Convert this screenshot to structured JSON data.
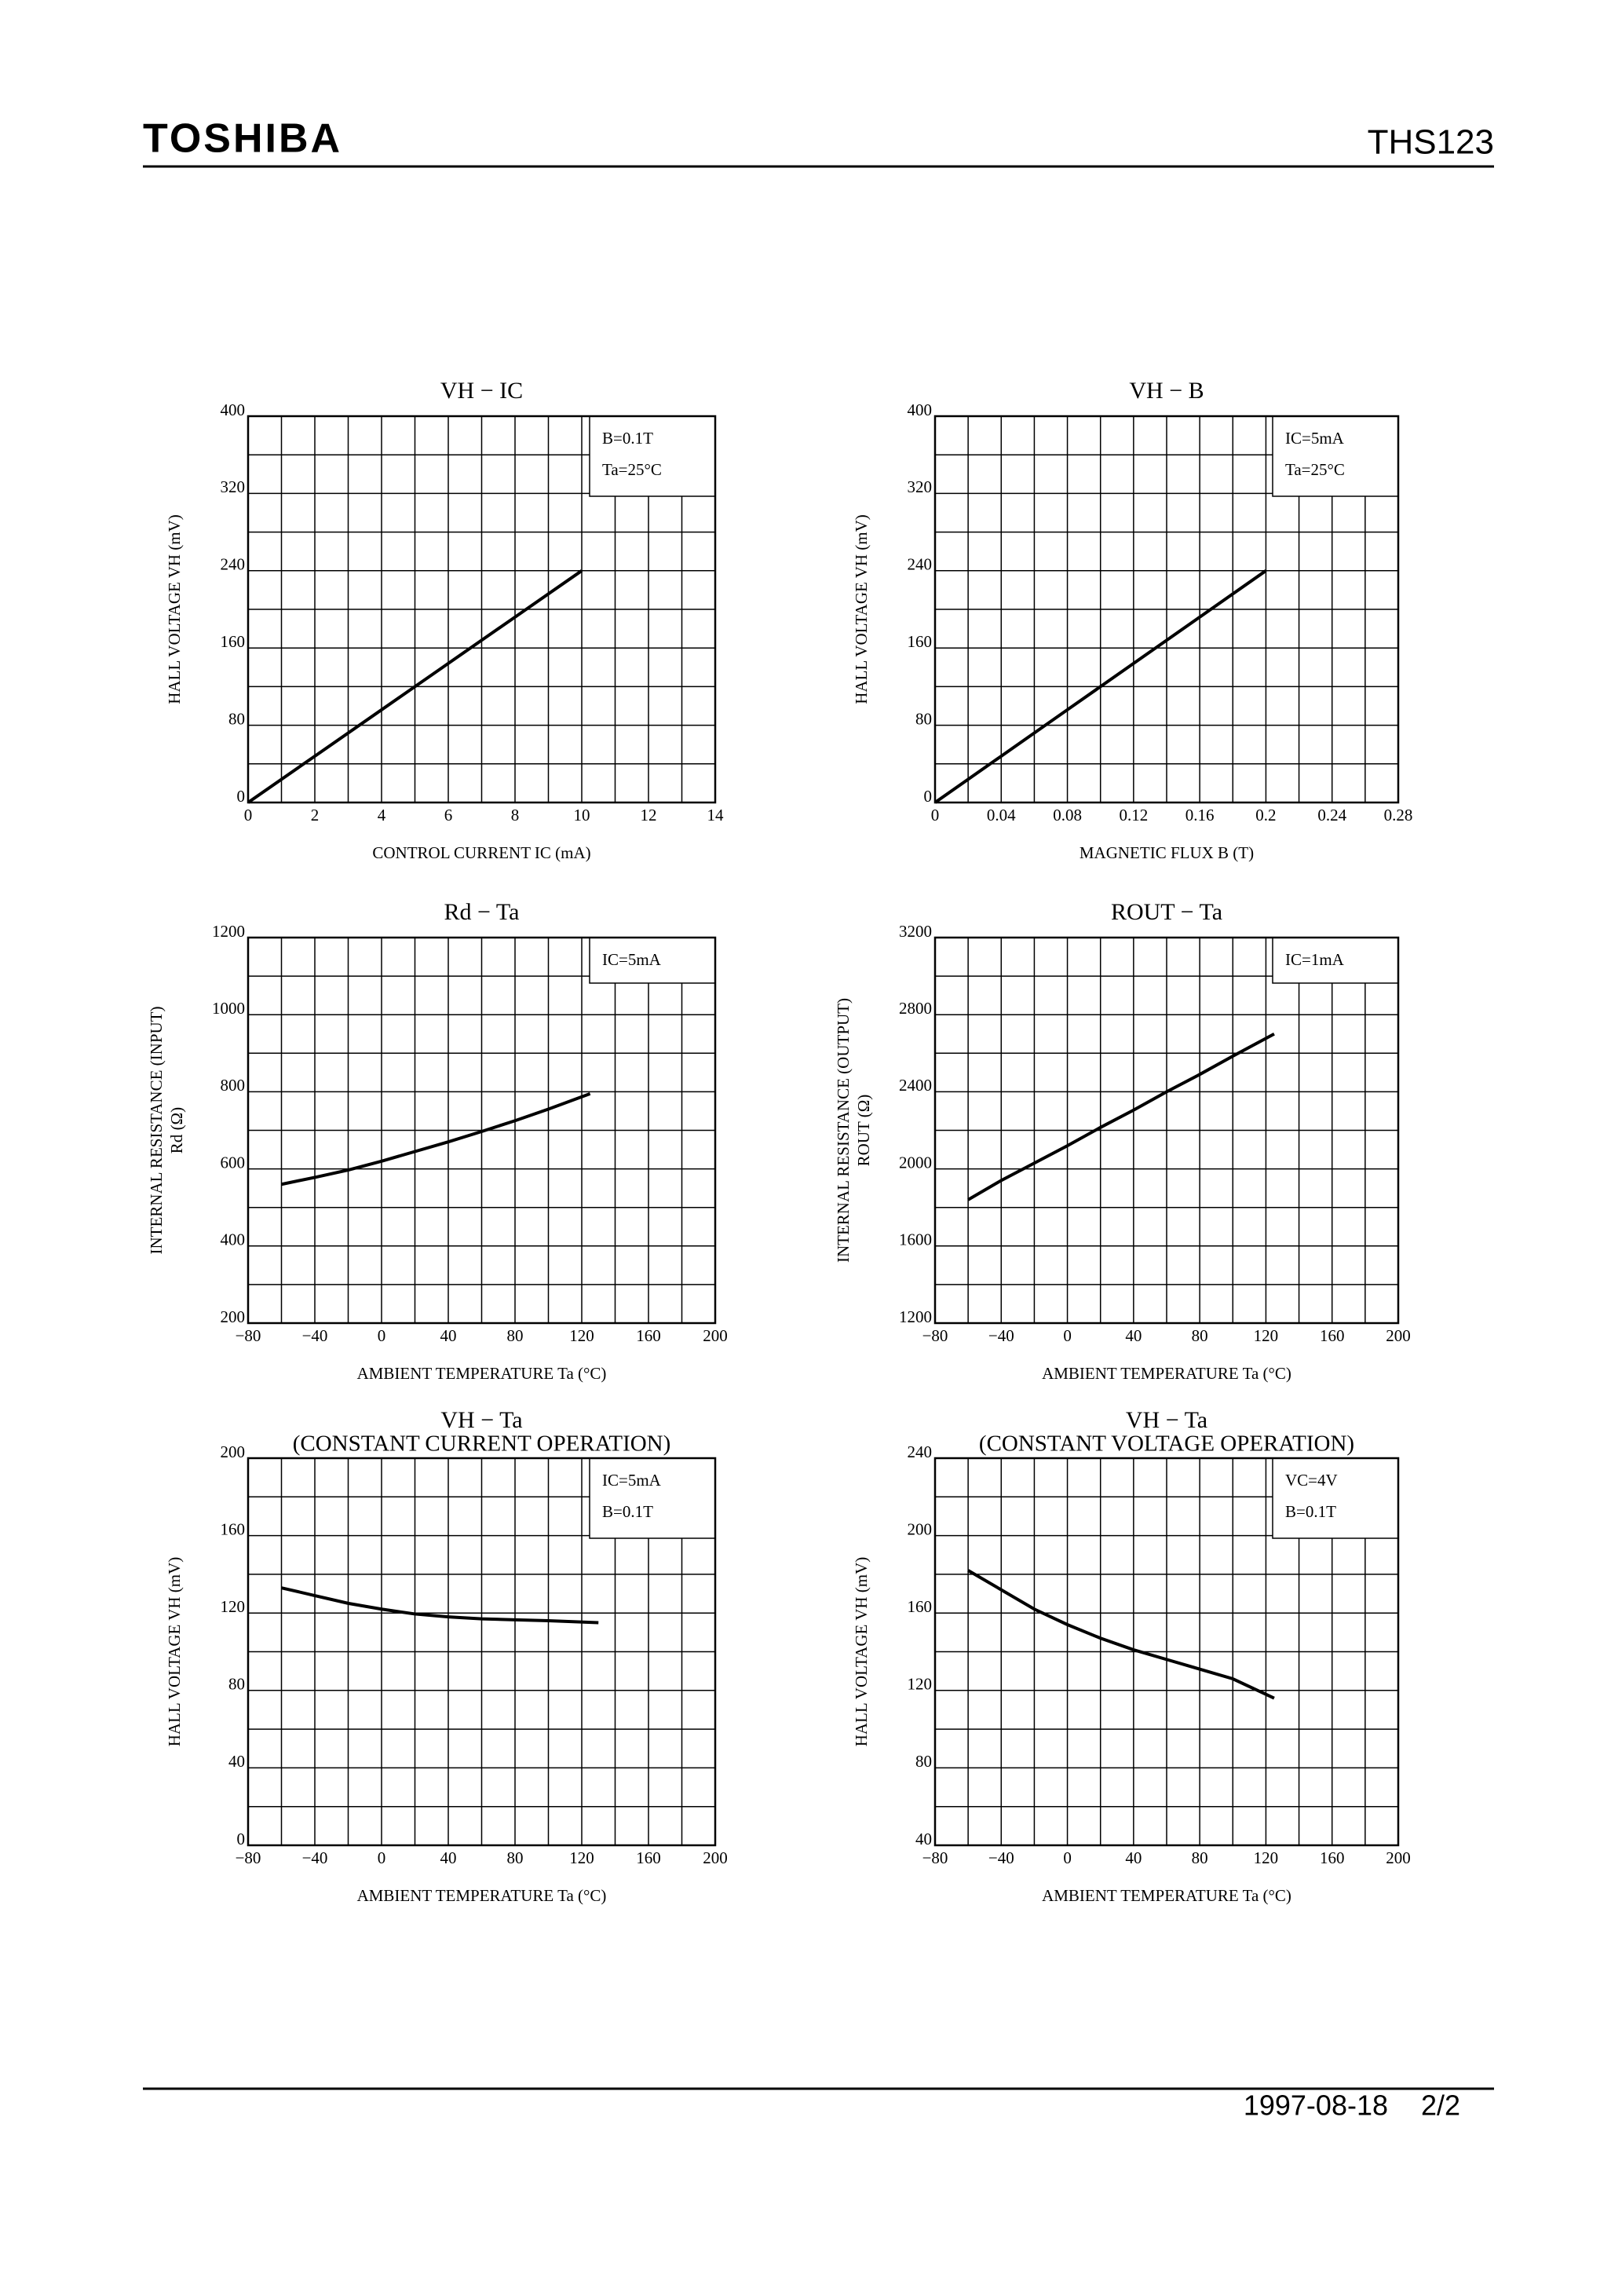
{
  "header": {
    "brand": "TOSHIBA",
    "part": "THS123"
  },
  "footer": {
    "date": "1997-08-18",
    "page": "2/2"
  },
  "chart_data": [
    {
      "type": "line",
      "title": "VH − IC",
      "xlabel": "CONTROL CURRENT IC (mA)",
      "ylabel": [
        "HALL VOLTAGE VH (mV)"
      ],
      "annotations": [
        "B=0.1T",
        "Ta=25°C"
      ],
      "grid": true,
      "color": "#000000",
      "x": [
        0,
        2,
        4,
        6,
        8,
        10
      ],
      "values": [
        0,
        48,
        96,
        144,
        192,
        240
      ],
      "xlim": [
        0,
        14
      ],
      "xticks": [
        0,
        2,
        4,
        6,
        8,
        10,
        12,
        14
      ],
      "ylim": [
        0,
        400
      ],
      "yticks": [
        0,
        80,
        160,
        240,
        320,
        400
      ]
    },
    {
      "type": "line",
      "title": "VH − B",
      "xlabel": "MAGNETIC FLUX B (T)",
      "ylabel": [
        "HALL VOLTAGE VH (mV)"
      ],
      "annotations": [
        "IC=5mA",
        "Ta=25°C"
      ],
      "grid": true,
      "color": "#000000",
      "x": [
        0,
        0.04,
        0.08,
        0.12,
        0.16,
        0.2
      ],
      "values": [
        0,
        48,
        96,
        144,
        192,
        240
      ],
      "xlim": [
        0,
        0.28
      ],
      "xticks": [
        0,
        0.04,
        0.08,
        0.12,
        0.16,
        0.2,
        0.24,
        0.28
      ],
      "ylim": [
        0,
        400
      ],
      "yticks": [
        0,
        80,
        160,
        240,
        320,
        400
      ]
    },
    {
      "type": "line",
      "title": "Rd − Ta",
      "xlabel": "AMBIENT TEMPERATURE Ta (°C)",
      "ylabel": [
        "INTERNAL RESISTANCE (INPUT)",
        "Rd (Ω)"
      ],
      "annotations": [
        "IC=5mA"
      ],
      "grid": true,
      "color": "#000000",
      "x": [
        -60,
        -40,
        -20,
        0,
        20,
        40,
        60,
        80,
        100,
        125
      ],
      "values": [
        560,
        578,
        597,
        620,
        645,
        670,
        697,
        725,
        755,
        795
      ],
      "xlim": [
        -80,
        200
      ],
      "xticks": [
        {
          "value": -80,
          "label": "−80"
        },
        {
          "value": -40,
          "label": "−40"
        },
        0,
        40,
        80,
        120,
        160,
        200
      ],
      "ylim": [
        200,
        1200
      ],
      "yticks": [
        200,
        400,
        600,
        800,
        1000,
        1200
      ]
    },
    {
      "type": "line",
      "title": "ROUT − Ta",
      "xlabel": "AMBIENT TEMPERATURE Ta (°C)",
      "ylabel": [
        "INTERNAL RESISTANCE (OUTPUT)",
        "ROUT (Ω)"
      ],
      "annotations": [
        "IC=1mA"
      ],
      "grid": true,
      "color": "#000000",
      "x": [
        -60,
        -40,
        -20,
        0,
        20,
        40,
        60,
        80,
        100,
        125
      ],
      "values": [
        1840,
        1940,
        2030,
        2120,
        2215,
        2305,
        2400,
        2490,
        2585,
        2700
      ],
      "xlim": [
        -80,
        200
      ],
      "xticks": [
        {
          "value": -80,
          "label": "−80"
        },
        {
          "value": -40,
          "label": "−40"
        },
        0,
        40,
        80,
        120,
        160,
        200
      ],
      "ylim": [
        1200,
        3200
      ],
      "yticks": [
        1200,
        1600,
        2000,
        2400,
        2800,
        3200
      ]
    },
    {
      "type": "line",
      "title": "VH − Ta",
      "subtitle": "(CONSTANT CURRENT OPERATION)",
      "xlabel": "AMBIENT TEMPERATURE Ta (°C)",
      "ylabel": [
        "HALL VOLTAGE VH (mV)"
      ],
      "annotations": [
        "IC=5mA",
        "B=0.1T"
      ],
      "grid": true,
      "color": "#000000",
      "x": [
        -60,
        -40,
        -20,
        0,
        20,
        40,
        60,
        80,
        100,
        130
      ],
      "values": [
        133,
        129,
        125,
        122,
        119.5,
        118,
        117,
        116.5,
        116,
        115
      ],
      "xlim": [
        -80,
        200
      ],
      "xticks": [
        {
          "value": -80,
          "label": "−80"
        },
        {
          "value": -40,
          "label": "−40"
        },
        0,
        40,
        80,
        120,
        160,
        200
      ],
      "ylim": [
        0,
        200
      ],
      "yticks": [
        0,
        40,
        80,
        120,
        160,
        200
      ]
    },
    {
      "type": "line",
      "title": "VH − Ta",
      "subtitle": "(CONSTANT VOLTAGE OPERATION)",
      "xlabel": "AMBIENT TEMPERATURE Ta (°C)",
      "ylabel": [
        "HALL VOLTAGE VH (mV)"
      ],
      "annotations": [
        "VC=4V",
        "B=0.1T"
      ],
      "grid": true,
      "color": "#000000",
      "x": [
        -60,
        -40,
        -20,
        0,
        20,
        40,
        60,
        80,
        100,
        125
      ],
      "values": [
        182,
        172,
        162,
        154,
        147,
        141,
        136,
        131,
        126,
        116
      ],
      "xlim": [
        -80,
        200
      ],
      "xticks": [
        {
          "value": -80,
          "label": "−80"
        },
        {
          "value": -40,
          "label": "−40"
        },
        0,
        40,
        80,
        120,
        160,
        200
      ],
      "ylim": [
        40,
        240
      ],
      "yticks": [
        40,
        80,
        120,
        160,
        200,
        240
      ]
    }
  ]
}
